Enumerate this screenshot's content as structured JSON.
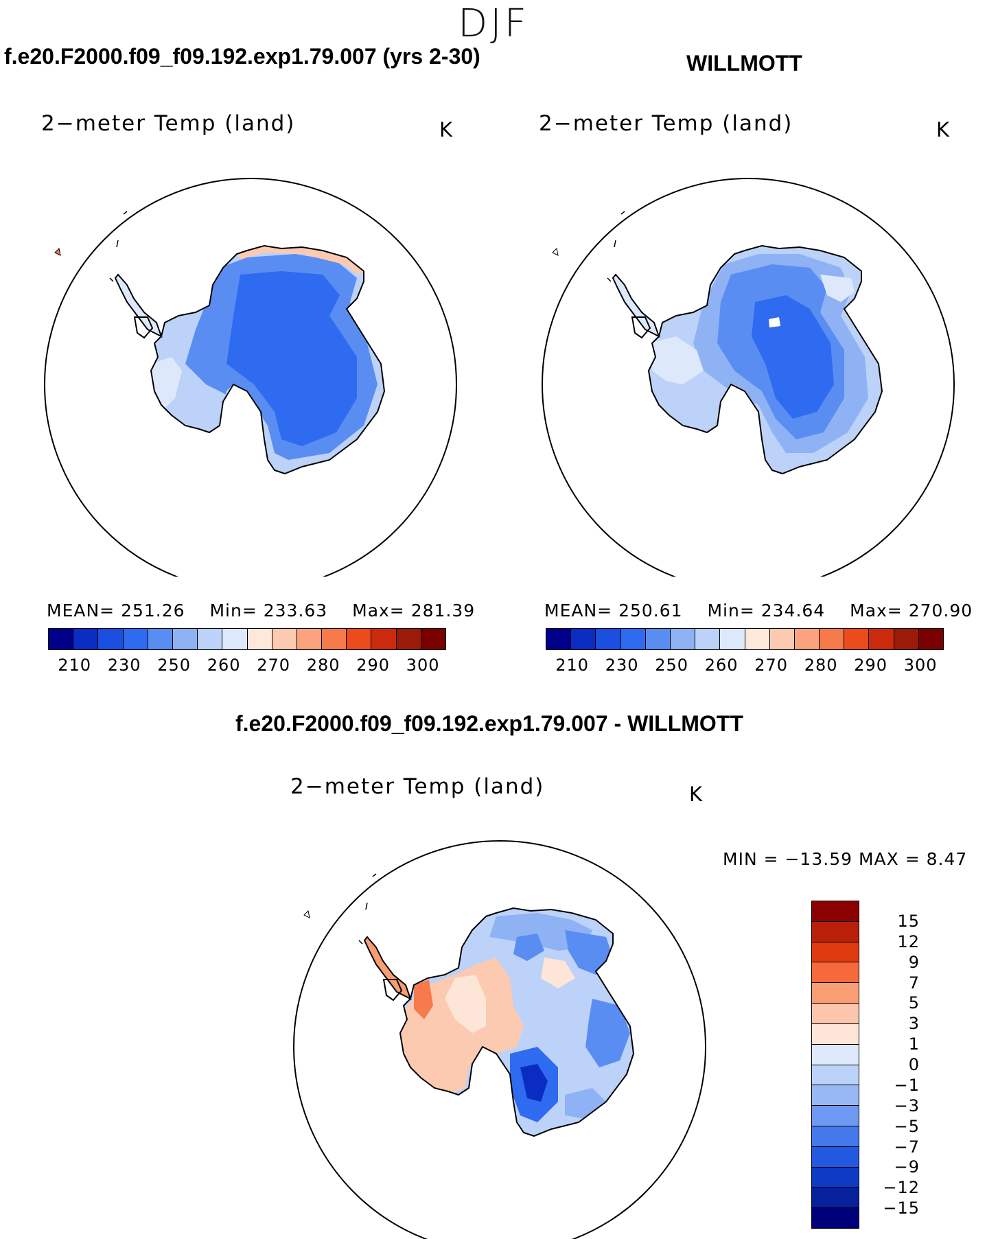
{
  "season": "DJF",
  "panels": {
    "model": {
      "case_title": "f.e20.F2000.f09_f09.192.exp1.79.007 (yrs 2-30)",
      "variable": "2−meter Temp (land)",
      "unit": "K",
      "mean_label": "MEAN=",
      "mean": "251.26",
      "min_label": "Min=",
      "min": "233.63",
      "max_label": "Max=",
      "max": "281.39"
    },
    "obs": {
      "case_title": "WILLMOTT",
      "variable": "2−meter Temp (land)",
      "unit": "K",
      "mean_label": "MEAN=",
      "mean": "250.61",
      "min_label": "Min=",
      "min": "234.64",
      "max_label": "Max=",
      "max": "270.90"
    },
    "diff": {
      "case_title": "f.e20.F2000.f09_f09.192.exp1.79.007 - WILLMOTT",
      "variable": "2−meter Temp (land)",
      "unit": "K",
      "minmax_text": "MIN = −13.59  MAX =     8.47"
    }
  },
  "abs_colorbar": {
    "colors": [
      "#00008b",
      "#0a2cc2",
      "#1a4fe0",
      "#2f6bf0",
      "#5a8df2",
      "#8fb2f5",
      "#bcd2f8",
      "#dde9fb",
      "#fde9dc",
      "#fccab0",
      "#fba27f",
      "#f77a4d",
      "#ec4b1c",
      "#cc2a0c",
      "#9c1a08",
      "#7a0000"
    ],
    "labels": [
      "210",
      "230",
      "250",
      "260",
      "270",
      "280",
      "290",
      "300"
    ]
  },
  "diff_colorbar": {
    "colors_top_to_bottom": [
      "#8b0000",
      "#b8200a",
      "#e03a10",
      "#f5693a",
      "#f99d72",
      "#fbc6ab",
      "#fde6d8",
      "#dde9fb",
      "#bcd2f8",
      "#98b8f5",
      "#6d99f2",
      "#4479ec",
      "#2358e0",
      "#0f3ac4",
      "#07209c",
      "#00007a"
    ],
    "labels": [
      "15",
      "12",
      "9",
      "7",
      "5",
      "3",
      "1",
      "0",
      "−1",
      "−3",
      "−5",
      "−7",
      "−9",
      "−12",
      "−15"
    ]
  }
}
